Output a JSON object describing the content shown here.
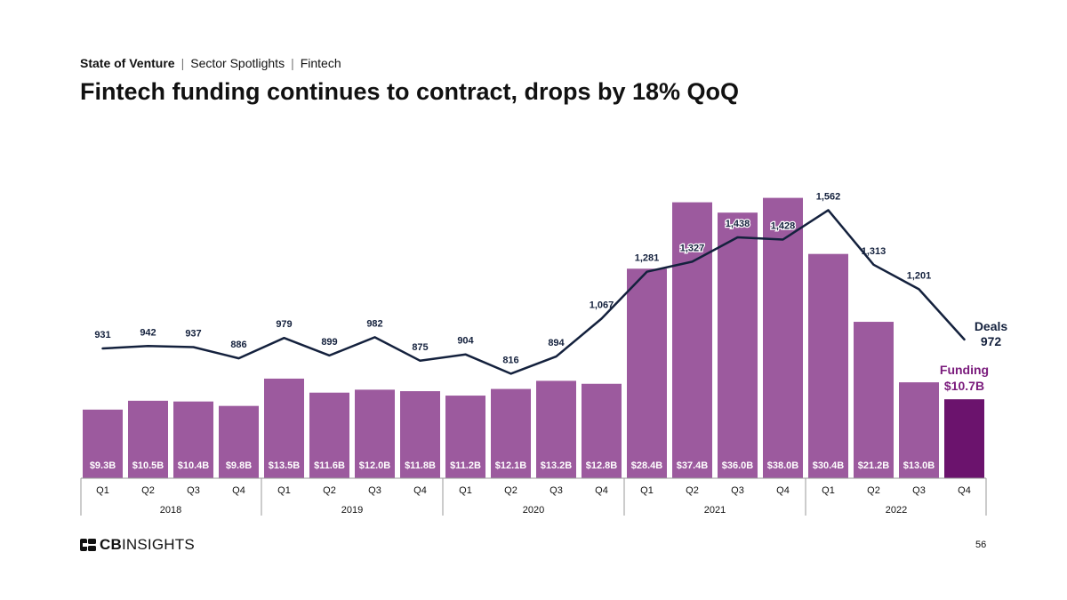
{
  "header": {
    "breadcrumb": [
      "State of Venture",
      "Sector Spotlights",
      "Fintech"
    ],
    "title": "Fintech funding continues to contract, drops by 18% QoQ"
  },
  "colors": {
    "bar": "#9c5a9e",
    "bar_highlight": "#6b136d",
    "line": "#14213d",
    "funding_label": "#7a1b7c"
  },
  "chart_data": {
    "type": "bar+line",
    "categories": [
      "Q1",
      "Q2",
      "Q3",
      "Q4",
      "Q1",
      "Q2",
      "Q3",
      "Q4",
      "Q1",
      "Q2",
      "Q3",
      "Q4",
      "Q1",
      "Q2",
      "Q3",
      "Q4",
      "Q1",
      "Q2",
      "Q3",
      "Q4"
    ],
    "years": [
      {
        "label": "2018",
        "start": 0,
        "end": 3
      },
      {
        "label": "2019",
        "start": 4,
        "end": 7
      },
      {
        "label": "2020",
        "start": 8,
        "end": 11
      },
      {
        "label": "2021",
        "start": 12,
        "end": 15
      },
      {
        "label": "2022",
        "start": 16,
        "end": 19
      }
    ],
    "series": [
      {
        "name": "Funding",
        "type": "bar",
        "unit": "$B",
        "values": [
          9.3,
          10.5,
          10.4,
          9.8,
          13.5,
          11.6,
          12.0,
          11.8,
          11.2,
          12.1,
          13.2,
          12.8,
          28.4,
          37.4,
          36.0,
          38.0,
          30.4,
          21.2,
          13.0,
          10.7
        ],
        "labels": [
          "$9.3B",
          "$10.5B",
          "$10.4B",
          "$9.8B",
          "$13.5B",
          "$11.6B",
          "$12.0B",
          "$11.8B",
          "$11.2B",
          "$12.1B",
          "$13.2B",
          "$12.8B",
          "$28.4B",
          "$37.4B",
          "$36.0B",
          "$38.0B",
          "$30.4B",
          "$21.2B",
          "$13.0B",
          ""
        ]
      },
      {
        "name": "Deals",
        "type": "line",
        "values": [
          931,
          942,
          937,
          886,
          979,
          899,
          982,
          875,
          904,
          816,
          894,
          1067,
          1281,
          1327,
          1438,
          1428,
          1562,
          1313,
          1201,
          972
        ],
        "labels": [
          "931",
          "942",
          "937",
          "886",
          "979",
          "899",
          "982",
          "875",
          "904",
          "816",
          "894",
          "1,067",
          "1,281",
          "1,327",
          "1,438",
          "1,428",
          "1,562",
          "1,313",
          "1,201",
          ""
        ]
      }
    ],
    "callouts": {
      "deals_name": "Deals",
      "deals_value": "972",
      "funding_name": "Funding",
      "funding_value": "$10.7B"
    }
  },
  "footer": {
    "logo_bold": "CB",
    "logo_rest": "INSIGHTS",
    "page_number": "56"
  }
}
